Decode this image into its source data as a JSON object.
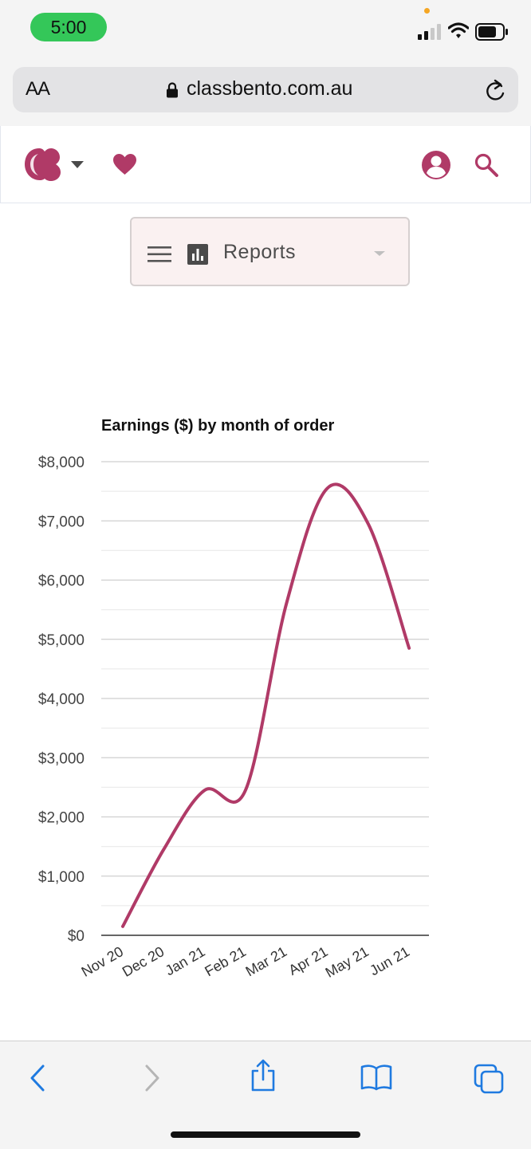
{
  "status_bar": {
    "time": "5:00",
    "signal_icon": "cellular-signal-icon",
    "wifi_icon": "wifi-icon",
    "battery_icon": "battery-icon"
  },
  "browser": {
    "text_size_label": "AA",
    "url": "classbento.com.au",
    "lock_icon": "lock-icon",
    "reload_icon": "reload-icon"
  },
  "site_header": {
    "logo_icon": "classbento-logo-icon",
    "heart_icon": "heart-icon",
    "account_icon": "account-circle-icon",
    "search_icon": "search-icon",
    "accent_color": "#b03a67"
  },
  "reports_menu": {
    "selected": "Reports",
    "menu_icon": "hamburger-menu-icon",
    "report_icon": "bar-chart-icon"
  },
  "chart_data": {
    "type": "line",
    "title": "Earnings ($) by month of order",
    "xlabel": "",
    "ylabel": "",
    "categories": [
      "Nov 20",
      "Dec 20",
      "Jan 21",
      "Feb 21",
      "Mar 21",
      "Apr 21",
      "May 21",
      "Jun 21"
    ],
    "series": [
      {
        "values": [
          150,
          1450,
          2450,
          2450,
          5600,
          7550,
          6950,
          4850
        ]
      }
    ],
    "ylim": [
      0,
      8000
    ],
    "y_ticks": [
      0,
      1000,
      2000,
      3000,
      4000,
      5000,
      6000,
      7000,
      8000
    ],
    "y_tick_labels": [
      "$0",
      "$1,000",
      "$2,000",
      "$3,000",
      "$4,000",
      "$5,000",
      "$6,000",
      "$7,000",
      "$8,000"
    ],
    "grid": true,
    "legend": "none",
    "line_color": "#b03a67"
  },
  "toolbar": {
    "back_icon": "chevron-left-icon",
    "forward_icon": "chevron-right-icon",
    "share_icon": "share-icon",
    "bookmarks_icon": "book-icon",
    "tabs_icon": "tabs-icon"
  }
}
